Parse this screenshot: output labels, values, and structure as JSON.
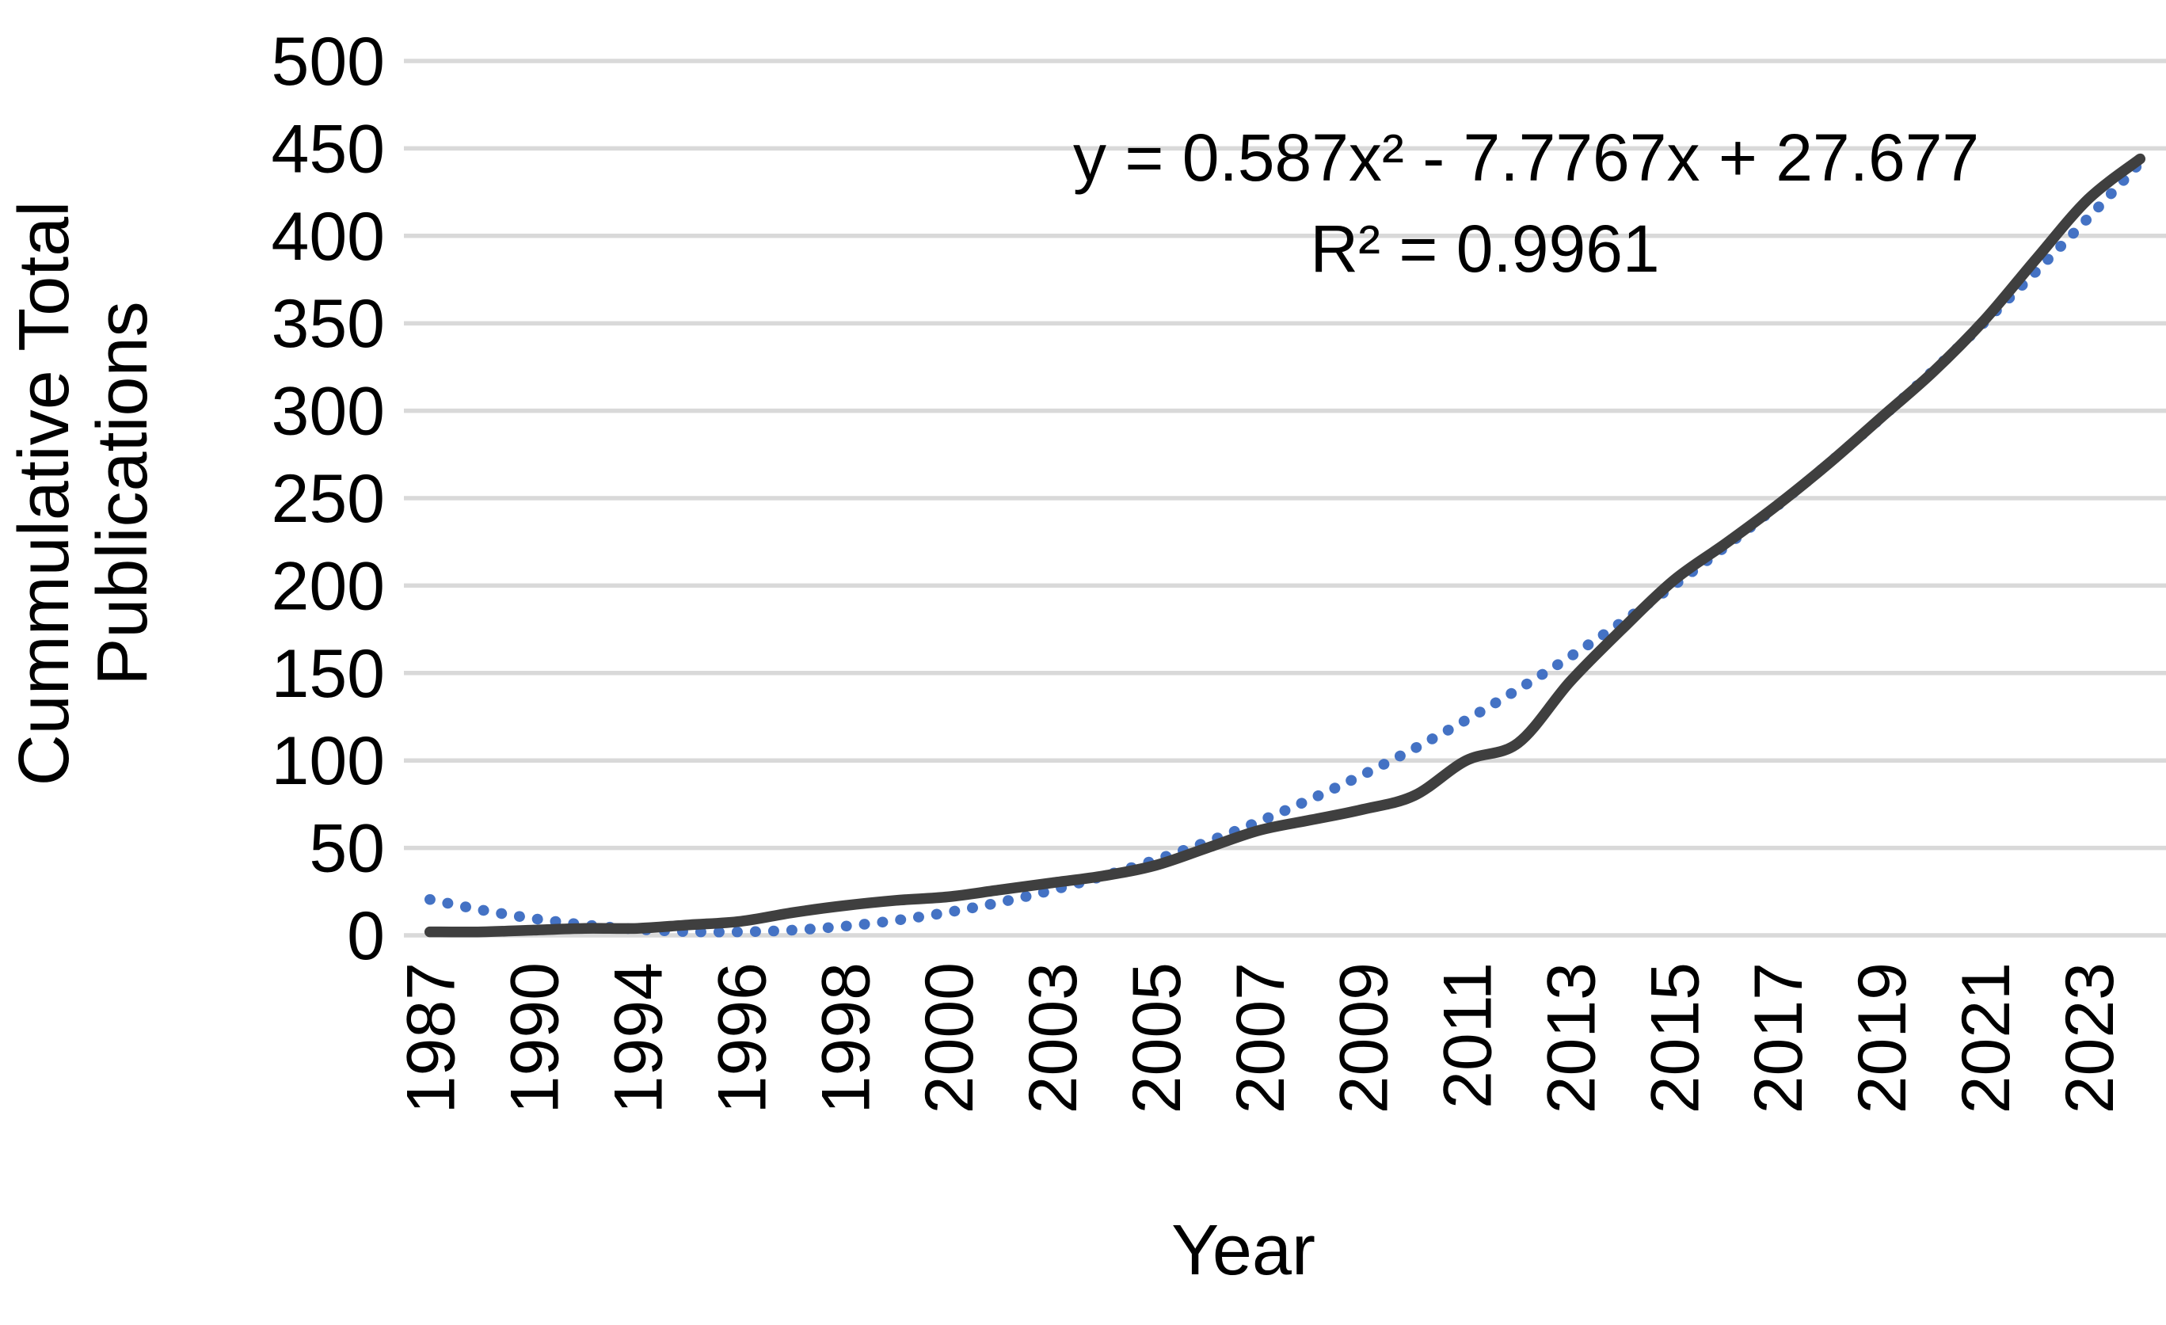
{
  "chart_data": {
    "type": "line",
    "title": "",
    "x_axis": {
      "title": "Year",
      "tick_labels": [
        "1987",
        "1990",
        "1994",
        "1996",
        "1998",
        "2000",
        "2003",
        "2005",
        "2007",
        "2009",
        "2011",
        "2013",
        "2015",
        "2017",
        "2019",
        "2021",
        "2023"
      ],
      "note": "labels shown on every other data point",
      "point_count": 34
    },
    "y_axis": {
      "title_line1": "Cummulative Total",
      "title_line2": "Publications",
      "min": 0,
      "max": 500,
      "tick_step": 50,
      "tick_labels": [
        "0",
        "50",
        "100",
        "150",
        "200",
        "250",
        "300",
        "350",
        "400",
        "450",
        "500"
      ]
    },
    "series": [
      {
        "name": "cumulative-total-publications",
        "style": "solid-smooth",
        "color": "#3F3F3F",
        "values": [
          2,
          2,
          3,
          4,
          4,
          6,
          8,
          13,
          17,
          20,
          22,
          26,
          30,
          34,
          40,
          50,
          60,
          66,
          72,
          80,
          100,
          110,
          145,
          175,
          203,
          224,
          246,
          270,
          296,
          322,
          352,
          387,
          421,
          444
        ]
      },
      {
        "name": "polynomial-trendline",
        "style": "dotted-smooth",
        "color": "#4472C4",
        "values": [
          20.5,
          14.5,
          9.6,
          6.0,
          3.5,
          2.1,
          2.0,
          3.0,
          5.2,
          8.6,
          13.2,
          18.9,
          25.8,
          33.9,
          43.1,
          53.5,
          65.1,
          77.9,
          91.8,
          106.9,
          123.2,
          140.7,
          159.3,
          179.1,
          200.1,
          222.3,
          245.6,
          270.1,
          295.8,
          322.7,
          350.7,
          379.9,
          410.3,
          441.8
        ]
      }
    ],
    "trendline": {
      "equation": "y = 0.587x² - 7.7767x + 27.677",
      "r_squared": "R² = 0.9961",
      "coefficients": {
        "a": 0.587,
        "b": -7.7767,
        "c": 27.677
      }
    },
    "layout": {
      "gridlines": "horizontal",
      "grid_color": "#D9D9D9",
      "background": "#FFFFFF",
      "plot_left": 510,
      "plot_right": 2735,
      "plot_top": 77,
      "plot_bottom": 1181
    }
  }
}
